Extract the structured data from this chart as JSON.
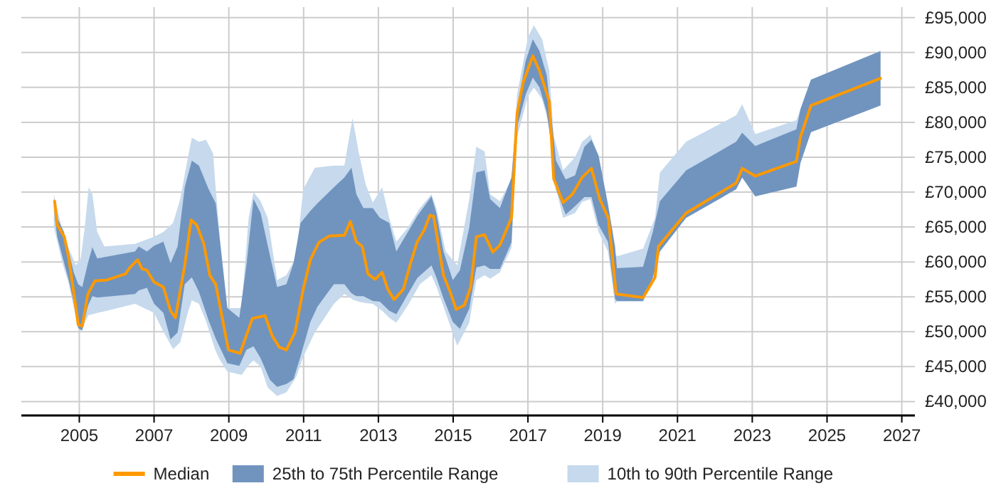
{
  "chart_data": {
    "type": "line",
    "xlim": [
      2003.45,
      2027.35
    ],
    "ylim": [
      38000,
      96500
    ],
    "xticks": [
      2005,
      2007,
      2009,
      2011,
      2013,
      2015,
      2017,
      2019,
      2021,
      2023,
      2025,
      2027
    ],
    "yticks": [
      {
        "value": 40000,
        "label": "£40,000"
      },
      {
        "value": 45000,
        "label": "£45,000"
      },
      {
        "value": 50000,
        "label": "£50,000"
      },
      {
        "value": 55000,
        "label": "£55,000"
      },
      {
        "value": 60000,
        "label": "£60,000"
      },
      {
        "value": 65000,
        "label": "£65,000"
      },
      {
        "value": 70000,
        "label": "£70,000"
      },
      {
        "value": 75000,
        "label": "£75,000"
      },
      {
        "value": 80000,
        "label": "£80,000"
      },
      {
        "value": 85000,
        "label": "£85,000"
      },
      {
        "value": 90000,
        "label": "£90,000"
      },
      {
        "value": 95000,
        "label": "£95,000"
      }
    ],
    "grid": true,
    "legend": "bottom",
    "series": [
      {
        "name": "Median",
        "color": "#ff9900",
        "x": [
          2004.34,
          2004.41,
          2004.6,
          2004.72,
          2004.91,
          2004.97,
          2005.08,
          2005.23,
          2005.42,
          2005.73,
          2006.24,
          2006.34,
          2006.56,
          2006.68,
          2006.81,
          2007.0,
          2007.25,
          2007.44,
          2007.57,
          2007.82,
          2007.99,
          2008.14,
          2008.33,
          2008.49,
          2008.65,
          2008.99,
          2009.3,
          2009.63,
          2009.97,
          2010.16,
          2010.35,
          2010.54,
          2010.77,
          2010.99,
          2011.18,
          2011.41,
          2011.68,
          2012.09,
          2012.25,
          2012.41,
          2012.57,
          2012.72,
          2012.91,
          2013.1,
          2013.25,
          2013.42,
          2013.67,
          2013.86,
          2014.04,
          2014.23,
          2014.38,
          2014.48,
          2014.74,
          2014.92,
          2015.08,
          2015.3,
          2015.47,
          2015.62,
          2015.84,
          2016.06,
          2016.25,
          2016.56,
          2016.71,
          2016.87,
          2017.13,
          2017.31,
          2017.57,
          2017.69,
          2017.94,
          2018.19,
          2018.45,
          2018.7,
          2018.92,
          2019.15,
          2019.36,
          2020.08,
          2020.4,
          2020.49,
          2021.23,
          2022.57,
          2022.73,
          2023.08,
          2024.18,
          2024.29,
          2024.57,
          2026.43
        ],
        "values": [
          68700,
          65300,
          63600,
          60500,
          53400,
          51000,
          50800,
          55400,
          57300,
          57400,
          58300,
          59100,
          60300,
          59000,
          58800,
          57100,
          56400,
          53000,
          52000,
          59500,
          66000,
          65300,
          62600,
          58100,
          56800,
          47400,
          46900,
          51900,
          52300,
          49400,
          47800,
          47400,
          49900,
          56100,
          60300,
          62800,
          63700,
          63800,
          65800,
          62900,
          62200,
          58300,
          57500,
          58500,
          56100,
          54600,
          56100,
          59800,
          62900,
          64600,
          66700,
          66500,
          58100,
          55700,
          53200,
          53800,
          56400,
          63600,
          63900,
          61400,
          62400,
          66300,
          81300,
          85700,
          89500,
          87400,
          83000,
          71900,
          68500,
          69700,
          72100,
          73400,
          69000,
          66300,
          55400,
          54900,
          57800,
          62200,
          67000,
          71300,
          73400,
          72300,
          74400,
          77900,
          82400,
          86300
        ]
      },
      {
        "name": "25th to 75th Percentile Range",
        "type": "area",
        "color": "#7094be",
        "x": [
          2004.34,
          2004.41,
          2004.59,
          2004.72,
          2004.85,
          2004.97,
          2005.08,
          2005.23,
          2005.35,
          2005.48,
          2006.49,
          2006.59,
          2006.81,
          2007.0,
          2007.25,
          2007.44,
          2007.63,
          2007.82,
          2008.01,
          2008.2,
          2008.46,
          2008.65,
          2008.96,
          2009.28,
          2009.47,
          2009.66,
          2009.85,
          2010.1,
          2010.29,
          2010.54,
          2010.73,
          2010.92,
          2011.18,
          2011.37,
          2011.81,
          2012.09,
          2012.28,
          2012.41,
          2012.6,
          2012.85,
          2013.04,
          2013.29,
          2013.48,
          2013.79,
          2014.04,
          2014.42,
          2014.55,
          2014.74,
          2014.99,
          2015.18,
          2015.43,
          2015.62,
          2015.84,
          2015.99,
          2016.25,
          2016.56,
          2016.71,
          2016.94,
          2017.13,
          2017.31,
          2017.5,
          2017.63,
          2017.75,
          2018.01,
          2018.26,
          2018.51,
          2018.7,
          2018.89,
          2019.14,
          2019.33,
          2019.38,
          2020.08,
          2020.34,
          2020.53,
          2021.23,
          2022.57,
          2022.73,
          2023.08,
          2024.18,
          2024.29,
          2024.57,
          2026.43
        ],
        "values": [
          null,
          null,
          null,
          null,
          null,
          null,
          null,
          null,
          null,
          null,
          null,
          null,
          null,
          null,
          null,
          null,
          null,
          null,
          null,
          null,
          null,
          null,
          null,
          null,
          null,
          null,
          null,
          null,
          null,
          null,
          null,
          null,
          null,
          null,
          null,
          null,
          null,
          null,
          null,
          null,
          null,
          null,
          null,
          null,
          null,
          null,
          null,
          null,
          null,
          null,
          null,
          null,
          null,
          null,
          null,
          null,
          null,
          null,
          null,
          null,
          null,
          null,
          null,
          null,
          null,
          null,
          null,
          null,
          null,
          null,
          null,
          null,
          null,
          null,
          null,
          null,
          null,
          null,
          null,
          null,
          null,
          null
        ],
        "upper": [
          68500,
          66300,
          64300,
          61500,
          58500,
          56800,
          56400,
          59800,
          62100,
          60500,
          61500,
          62200,
          61500,
          62300,
          62900,
          59800,
          62200,
          70700,
          74500,
          73800,
          70400,
          68400,
          53400,
          52000,
          59500,
          69000,
          67000,
          60900,
          56400,
          56800,
          59800,
          65600,
          67300,
          68400,
          70700,
          72100,
          73500,
          69700,
          67700,
          67700,
          66300,
          65600,
          61500,
          64300,
          66600,
          69400,
          67000,
          61500,
          57400,
          58800,
          64900,
          72800,
          73100,
          69000,
          67700,
          72100,
          82000,
          88800,
          91900,
          90200,
          86800,
          80600,
          74500,
          71800,
          72400,
          76500,
          77500,
          75200,
          68300,
          62200,
          59100,
          59300,
          64300,
          68700,
          73100,
          77200,
          78500,
          76600,
          79000,
          81900,
          86100,
          90200
        ],
        "lower": [
          66500,
          63600,
          59900,
          57400,
          54200,
          50500,
          50200,
          53700,
          55100,
          54900,
          55400,
          55900,
          56300,
          54000,
          52700,
          48900,
          49900,
          56800,
          57800,
          55700,
          51600,
          49000,
          45500,
          45100,
          47400,
          47900,
          46200,
          43100,
          42100,
          42500,
          43200,
          46500,
          51400,
          53600,
          56800,
          56800,
          55500,
          55100,
          55100,
          54400,
          54300,
          53000,
          52500,
          55400,
          57700,
          59500,
          57800,
          54800,
          51400,
          50400,
          53300,
          59200,
          59500,
          59000,
          59000,
          62800,
          79300,
          84000,
          86400,
          85000,
          81500,
          76500,
          70400,
          66800,
          68000,
          69300,
          69300,
          65300,
          62900,
          54700,
          54400,
          54400,
          57800,
          61500,
          66300,
          70400,
          72100,
          69400,
          70800,
          74200,
          78600,
          82400
        ]
      },
      {
        "name": "10th to 90th Percentile Range",
        "type": "area",
        "color": "#c6d9ed",
        "x": [
          2004.32,
          2004.53,
          2004.72,
          2004.91,
          2005.04,
          2005.16,
          2005.25,
          2005.35,
          2005.48,
          2005.67,
          2006.49,
          2007.0,
          2007.25,
          2007.51,
          2007.7,
          2007.89,
          2008.01,
          2008.2,
          2008.39,
          2008.58,
          2008.65,
          2008.77,
          2008.96,
          2009.34,
          2009.53,
          2009.66,
          2009.85,
          2010.04,
          2010.29,
          2010.54,
          2010.8,
          2010.99,
          2011.3,
          2011.81,
          2012.09,
          2012.22,
          2012.31,
          2012.47,
          2012.66,
          2012.85,
          2013.1,
          2013.29,
          2013.48,
          2013.79,
          2014.11,
          2014.42,
          2014.55,
          2014.8,
          2015.11,
          2015.43,
          2015.62,
          2015.84,
          2015.99,
          2016.25,
          2016.56,
          2016.71,
          2017.0,
          2017.16,
          2017.38,
          2017.57,
          2017.69,
          2017.94,
          2018.26,
          2018.45,
          2018.67,
          2018.89,
          2019.14,
          2019.33,
          2019.38,
          2020.08,
          2020.4,
          2020.53,
          2021.23,
          2022.57,
          2022.73,
          2023.08,
          2024.18,
          2024.29,
          2024.57,
          2026.43
        ],
        "values": [
          null,
          null,
          null,
          null,
          null,
          null,
          null,
          null,
          null,
          null,
          null,
          null,
          null,
          null,
          null,
          null,
          null,
          null,
          null,
          null,
          null,
          null,
          null,
          null,
          null,
          null,
          null,
          null,
          null,
          null,
          null,
          null,
          null,
          null,
          null,
          null,
          null,
          null,
          null,
          null,
          null,
          null,
          null,
          null,
          null,
          null,
          null,
          null,
          null,
          null,
          null,
          null,
          null,
          null,
          null,
          null,
          null,
          null,
          null,
          null,
          null,
          null,
          null,
          null,
          null,
          null,
          null,
          null,
          null,
          null,
          null,
          null,
          null,
          null,
          null,
          null,
          null,
          null,
          null,
          null
        ],
        "upper": [
          69700,
          64900,
          61900,
          59500,
          60500,
          65600,
          70700,
          69700,
          64300,
          62200,
          62600,
          63600,
          64300,
          65600,
          69000,
          74500,
          77800,
          77200,
          77500,
          75500,
          70400,
          63000,
          53400,
          53400,
          66300,
          70000,
          68700,
          66300,
          57400,
          58100,
          60800,
          70400,
          73500,
          73800,
          73800,
          77900,
          80600,
          75800,
          71100,
          68500,
          70700,
          66300,
          62900,
          64900,
          67700,
          69700,
          67700,
          61500,
          59500,
          69000,
          76500,
          75800,
          69700,
          68700,
          71800,
          84000,
          92200,
          93900,
          91900,
          87400,
          78000,
          73100,
          75000,
          77200,
          78200,
          75200,
          67700,
          61200,
          60800,
          61900,
          66300,
          72800,
          77200,
          81000,
          82600,
          78300,
          80300,
          81900,
          86100,
          90200
        ],
        "lower": [
          65000,
          60200,
          56800,
          52000,
          49900,
          51500,
          52400,
          52500,
          52700,
          52900,
          54000,
          52700,
          50000,
          47500,
          48500,
          52500,
          54500,
          54000,
          51500,
          48300,
          47200,
          45900,
          44300,
          43800,
          45200,
          45900,
          45000,
          42000,
          40800,
          41300,
          43500,
          46400,
          49900,
          54000,
          55400,
          55000,
          54600,
          54300,
          54100,
          54000,
          53000,
          52000,
          51300,
          53800,
          56800,
          58100,
          56500,
          52700,
          48000,
          51300,
          57400,
          58100,
          57600,
          58500,
          62000,
          77900,
          83700,
          85000,
          83300,
          79500,
          72000,
          66300,
          67000,
          68600,
          69000,
          64300,
          61500,
          54000,
          54300,
          54300,
          58000,
          61500,
          66300,
          70400,
          72100,
          69400,
          70800,
          74200,
          78600,
          82400
        ]
      }
    ]
  }
}
